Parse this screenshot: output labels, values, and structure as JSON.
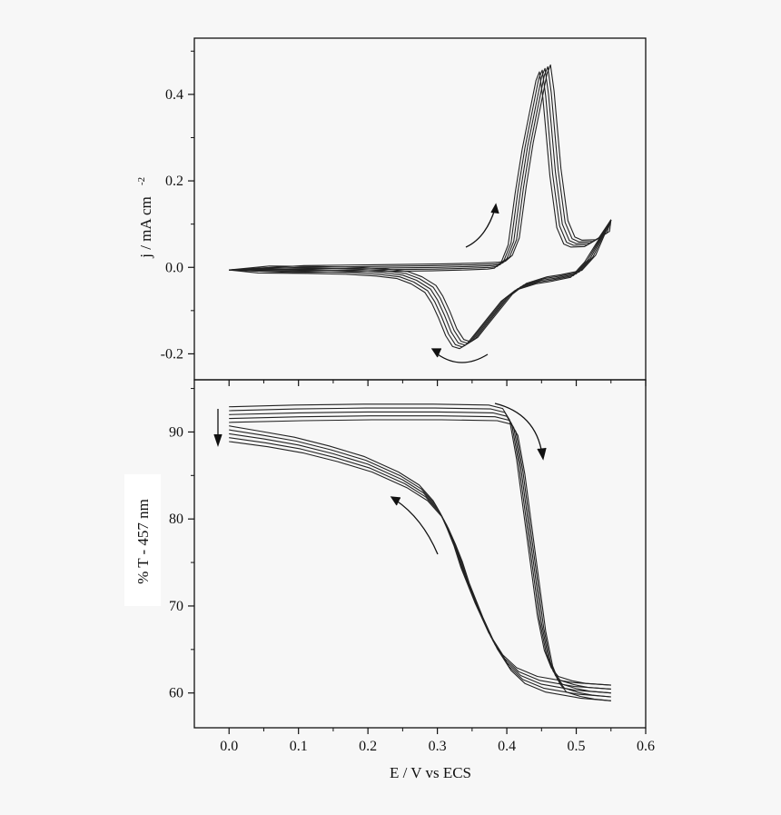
{
  "chart_data": [
    {
      "type": "line",
      "panel": "top",
      "ylabel": "j / mA cm",
      "ylabel_superscript": "-2",
      "xlim": [
        -0.05,
        0.6
      ],
      "ylim": [
        -0.26,
        0.53
      ],
      "xticks": [
        0.0,
        0.1,
        0.2,
        0.3,
        0.4,
        0.5,
        0.6
      ],
      "yticks": [
        -0.2,
        0.0,
        0.2,
        0.4
      ],
      "ytick_labels": [
        "-0.2",
        "0.0",
        "0.2",
        "0.4"
      ],
      "grid": false,
      "legend": "none",
      "curves": 5,
      "peak_shift_per_cycle": 0.004,
      "series": [
        {
          "name": "",
          "x": [
            0.0,
            0.1,
            0.2,
            0.3,
            0.35,
            0.38,
            0.39,
            0.4,
            0.41,
            0.42,
            0.43,
            0.44,
            0.45,
            0.455,
            0.46,
            0.47,
            0.48,
            0.49,
            0.5,
            0.52,
            0.54,
            0.55
          ],
          "y": [
            -0.006,
            -0.004,
            -0.002,
            0.0,
            0.002,
            0.004,
            0.006,
            0.02,
            0.06,
            0.18,
            0.28,
            0.36,
            0.44,
            0.46,
            0.4,
            0.22,
            0.1,
            0.062,
            0.055,
            0.056,
            0.075,
            0.11
          ]
        },
        {
          "name": "",
          "x": [
            0.55,
            0.52,
            0.5,
            0.47,
            0.45,
            0.42,
            0.4,
            0.38,
            0.36,
            0.35,
            0.34,
            0.33,
            0.32,
            0.31,
            0.3,
            0.29,
            0.27,
            0.25,
            0.22,
            0.18,
            0.12,
            0.05,
            0.0
          ],
          "y": [
            0.11,
            0.02,
            -0.015,
            -0.025,
            -0.03,
            -0.045,
            -0.07,
            -0.11,
            -0.15,
            -0.17,
            -0.18,
            -0.175,
            -0.15,
            -0.11,
            -0.075,
            -0.05,
            -0.03,
            -0.018,
            -0.012,
            -0.008,
            -0.006,
            -0.005,
            -0.006
          ]
        }
      ]
    },
    {
      "type": "line",
      "panel": "bottom",
      "xlabel": "E / V vs ECS",
      "ylabel": "% T - 457 nm",
      "xlim": [
        -0.05,
        0.6
      ],
      "ylim": [
        56,
        96
      ],
      "xticks": [
        0.0,
        0.1,
        0.2,
        0.3,
        0.4,
        0.5,
        0.6
      ],
      "xtick_labels": [
        "0.0",
        "0.1",
        "0.2",
        "0.3",
        "0.4",
        "0.5",
        "0.6"
      ],
      "yticks": [
        60,
        70,
        80,
        90
      ],
      "ytick_labels": [
        "60",
        "70",
        "80",
        "90"
      ],
      "grid": false,
      "legend": "none",
      "curves": 5,
      "series": [
        {
          "name": "",
          "x": [
            0.0,
            0.1,
            0.2,
            0.3,
            0.38,
            0.4,
            0.41,
            0.42,
            0.43,
            0.44,
            0.45,
            0.46,
            0.47,
            0.48,
            0.5,
            0.52,
            0.55
          ],
          "y": [
            92.0,
            92.2,
            92.3,
            92.3,
            92.2,
            91.8,
            90.5,
            86.0,
            80.0,
            74.0,
            68.0,
            64.0,
            62.0,
            61.0,
            60.5,
            60.2,
            60.0
          ]
        },
        {
          "name": "",
          "x": [
            0.55,
            0.5,
            0.45,
            0.42,
            0.4,
            0.38,
            0.36,
            0.34,
            0.33,
            0.32,
            0.31,
            0.3,
            0.28,
            0.25,
            0.2,
            0.15,
            0.1,
            0.05,
            0.0
          ],
          "y": [
            60.0,
            60.3,
            61.0,
            62.0,
            63.5,
            66.0,
            69.5,
            73.5,
            76.0,
            78.0,
            79.8,
            81.2,
            83.0,
            84.5,
            86.3,
            87.5,
            88.5,
            89.2,
            89.8
          ]
        }
      ]
    }
  ]
}
